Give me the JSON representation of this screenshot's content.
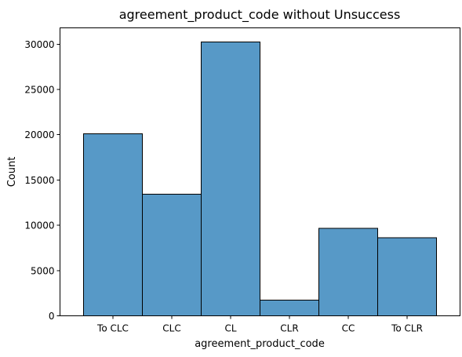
{
  "chart_data": {
    "type": "bar",
    "title": "agreement_product_code without Unsuccess",
    "xlabel": "agreement_product_code",
    "ylabel": "Count",
    "categories": [
      "To CLC",
      "CLC",
      "CL",
      "CLR",
      "CC",
      "To CLR"
    ],
    "values": [
      20100,
      13450,
      30250,
      1750,
      9650,
      8600
    ],
    "ylim": [
      0,
      31800
    ],
    "yticks": [
      0,
      5000,
      10000,
      15000,
      20000,
      25000,
      30000
    ],
    "grid": false,
    "bar_color": "#5799c7"
  }
}
